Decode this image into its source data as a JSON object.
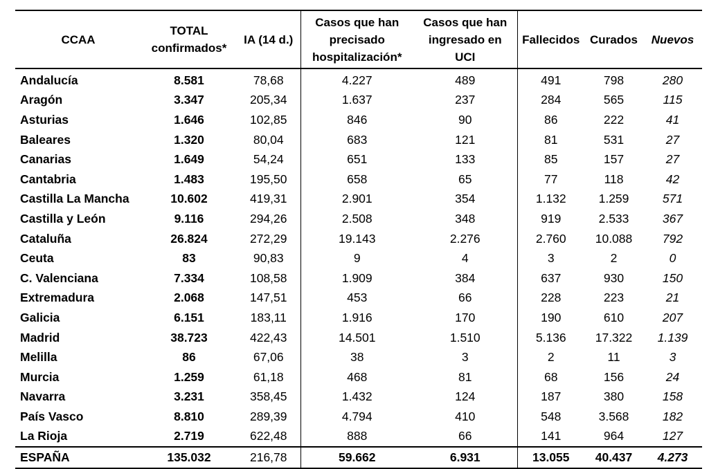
{
  "headers": {
    "ccaa": "CCAA",
    "total_line1": "TOTAL",
    "total_line2": "confirmados*",
    "ia": "IA (14 d.)",
    "hosp_line1": "Casos que han",
    "hosp_line2": "precisado",
    "hosp_line3": "hospitalización*",
    "uci_line1": "Casos que han",
    "uci_line2": "ingresado en",
    "uci_line3": "UCI",
    "fallecidos": "Fallecidos",
    "curados": "Curados",
    "nuevos": "Nuevos"
  },
  "rows": [
    {
      "ccaa": "Andalucía",
      "total": "8.581",
      "ia": "78,68",
      "hosp": "4.227",
      "uci": "489",
      "fallecidos": "491",
      "curados": "798",
      "nuevos": "280"
    },
    {
      "ccaa": "Aragón",
      "total": "3.347",
      "ia": "205,34",
      "hosp": "1.637",
      "uci": "237",
      "fallecidos": "284",
      "curados": "565",
      "nuevos": "115"
    },
    {
      "ccaa": "Asturias",
      "total": "1.646",
      "ia": "102,85",
      "hosp": "846",
      "uci": "90",
      "fallecidos": "86",
      "curados": "222",
      "nuevos": "41"
    },
    {
      "ccaa": "Baleares",
      "total": "1.320",
      "ia": "80,04",
      "hosp": "683",
      "uci": "121",
      "fallecidos": "81",
      "curados": "531",
      "nuevos": "27"
    },
    {
      "ccaa": "Canarias",
      "total": "1.649",
      "ia": "54,24",
      "hosp": "651",
      "uci": "133",
      "fallecidos": "85",
      "curados": "157",
      "nuevos": "27"
    },
    {
      "ccaa": "Cantabria",
      "total": "1.483",
      "ia": "195,50",
      "hosp": "658",
      "uci": "65",
      "fallecidos": "77",
      "curados": "118",
      "nuevos": "42"
    },
    {
      "ccaa": "Castilla La Mancha",
      "total": "10.602",
      "ia": "419,31",
      "hosp": "2.901",
      "uci": "354",
      "fallecidos": "1.132",
      "curados": "1.259",
      "nuevos": "571"
    },
    {
      "ccaa": "Castilla y León",
      "total": "9.116",
      "ia": "294,26",
      "hosp": "2.508",
      "uci": "348",
      "fallecidos": "919",
      "curados": "2.533",
      "nuevos": "367"
    },
    {
      "ccaa": "Cataluña",
      "total": "26.824",
      "ia": "272,29",
      "hosp": "19.143",
      "uci": "2.276",
      "fallecidos": "2.760",
      "curados": "10.088",
      "nuevos": "792"
    },
    {
      "ccaa": "Ceuta",
      "total": "83",
      "ia": "90,83",
      "hosp": "9",
      "uci": "4",
      "fallecidos": "3",
      "curados": "2",
      "nuevos": "0"
    },
    {
      "ccaa": "C. Valenciana",
      "total": "7.334",
      "ia": "108,58",
      "hosp": "1.909",
      "uci": "384",
      "fallecidos": "637",
      "curados": "930",
      "nuevos": "150"
    },
    {
      "ccaa": "Extremadura",
      "total": "2.068",
      "ia": "147,51",
      "hosp": "453",
      "uci": "66",
      "fallecidos": "228",
      "curados": "223",
      "nuevos": "21"
    },
    {
      "ccaa": "Galicia",
      "total": "6.151",
      "ia": "183,11",
      "hosp": "1.916",
      "uci": "170",
      "fallecidos": "190",
      "curados": "610",
      "nuevos": "207"
    },
    {
      "ccaa": "Madrid",
      "total": "38.723",
      "ia": "422,43",
      "hosp": "14.501",
      "uci": "1.510",
      "fallecidos": "5.136",
      "curados": "17.322",
      "nuevos": "1.139"
    },
    {
      "ccaa": "Melilla",
      "total": "86",
      "ia": "67,06",
      "hosp": "38",
      "uci": "3",
      "fallecidos": "2",
      "curados": "11",
      "nuevos": "3"
    },
    {
      "ccaa": "Murcia",
      "total": "1.259",
      "ia": "61,18",
      "hosp": "468",
      "uci": "81",
      "fallecidos": "68",
      "curados": "156",
      "nuevos": "24"
    },
    {
      "ccaa": "Navarra",
      "total": "3.231",
      "ia": "358,45",
      "hosp": "1.432",
      "uci": "124",
      "fallecidos": "187",
      "curados": "380",
      "nuevos": "158"
    },
    {
      "ccaa": "País Vasco",
      "total": "8.810",
      "ia": "289,39",
      "hosp": "4.794",
      "uci": "410",
      "fallecidos": "548",
      "curados": "3.568",
      "nuevos": "182"
    },
    {
      "ccaa": "La Rioja",
      "total": "2.719",
      "ia": "622,48",
      "hosp": "888",
      "uci": "66",
      "fallecidos": "141",
      "curados": "964",
      "nuevos": "127"
    }
  ],
  "total_row": {
    "ccaa": "ESPAÑA",
    "total": "135.032",
    "ia": "216,78",
    "hosp": "59.662",
    "uci": "6.931",
    "fallecidos": "13.055",
    "curados": "40.437",
    "nuevos": "4.273"
  }
}
